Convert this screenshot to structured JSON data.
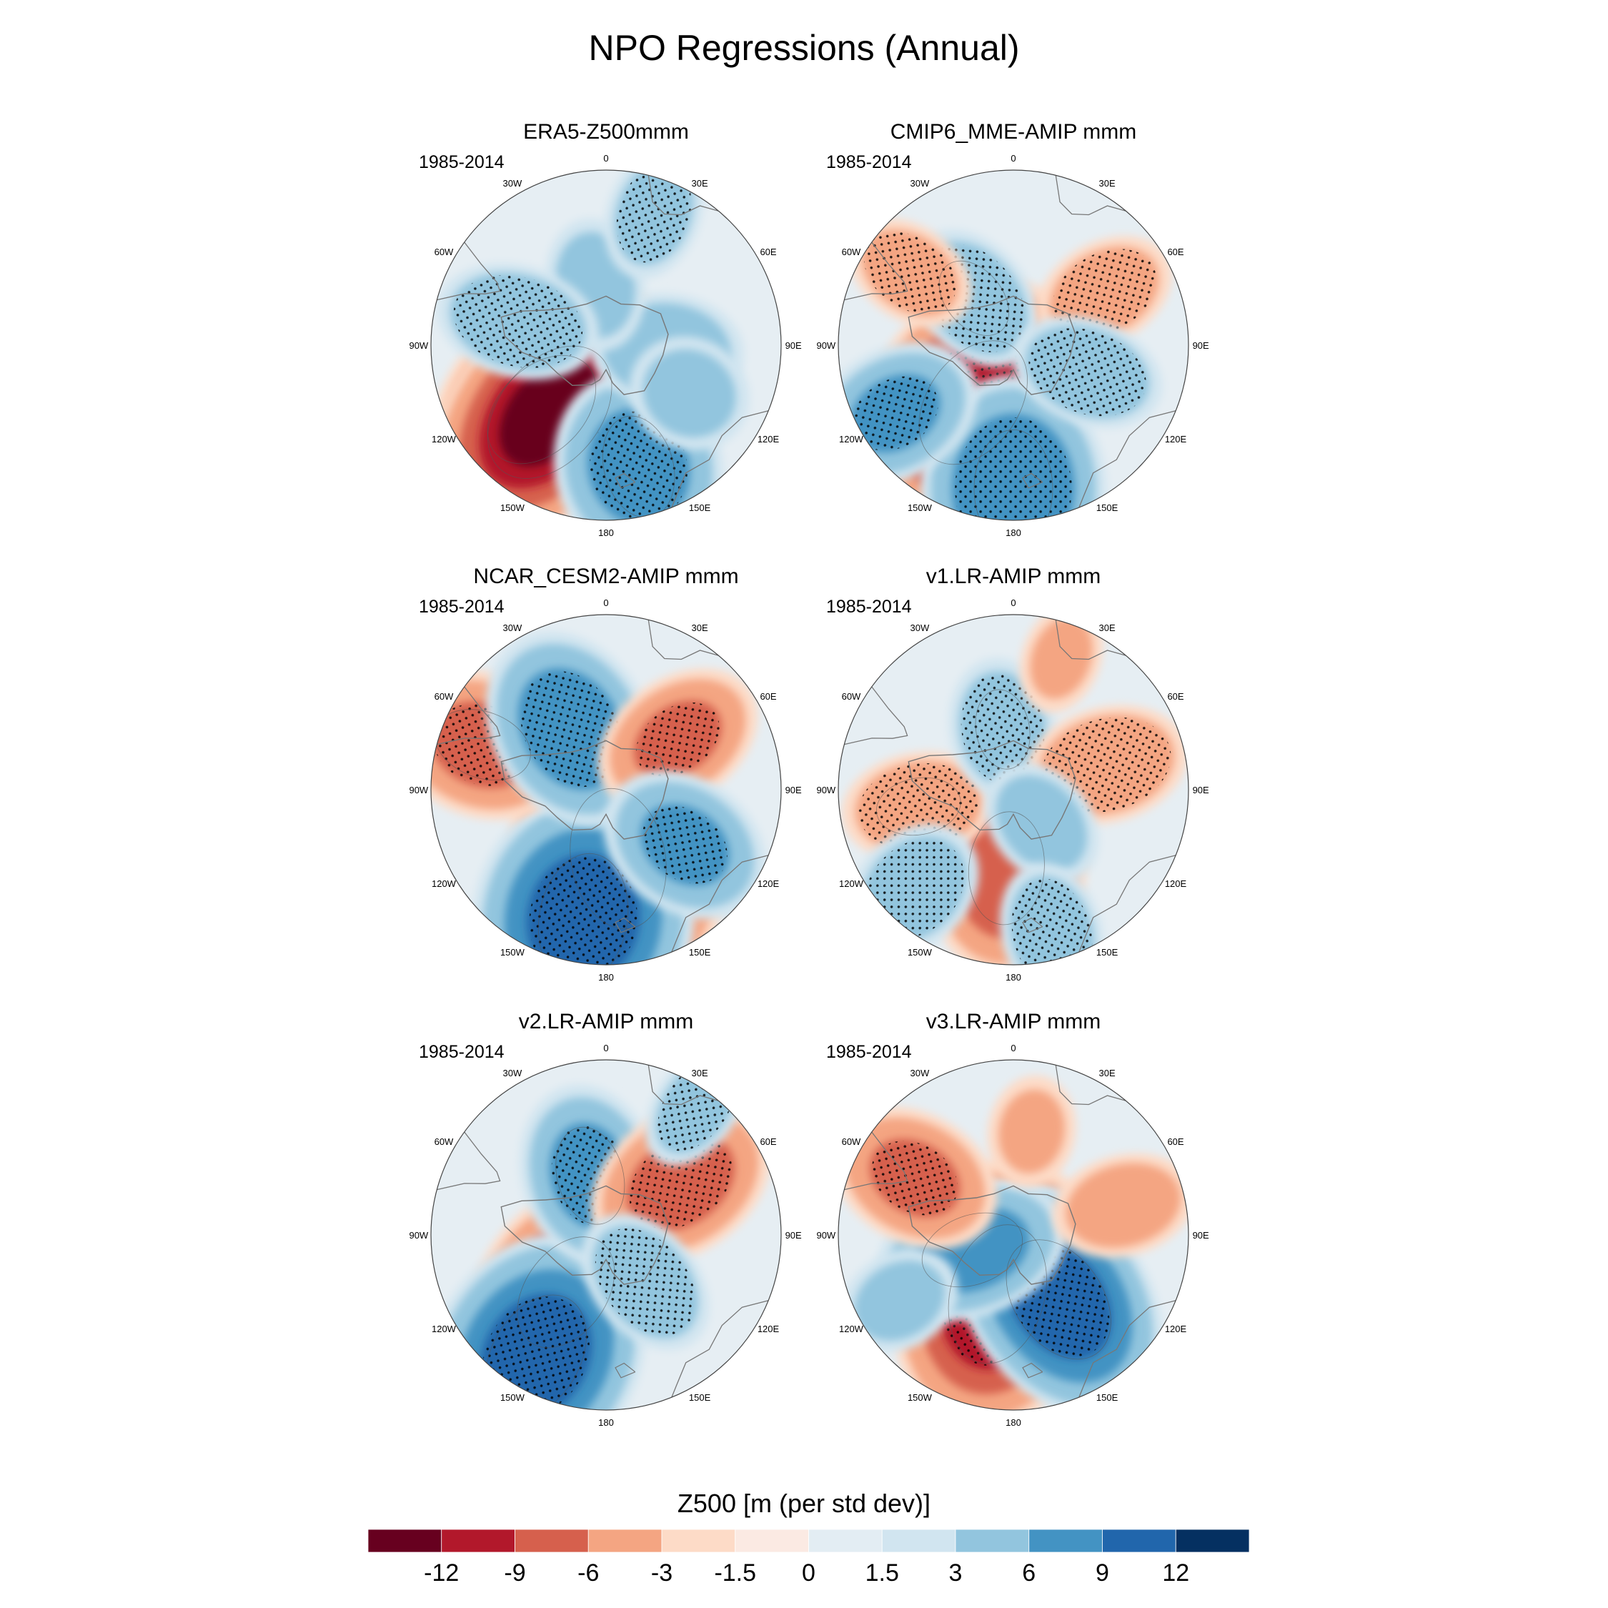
{
  "title": "NPO Regressions (Annual)",
  "lon_labels": [
    "0",
    "30E",
    "60E",
    "90E",
    "120E",
    "150E",
    "180",
    "150W",
    "120W",
    "90W",
    "60W",
    "30W"
  ],
  "panels": [
    {
      "title": "ERA5-Z500mmm",
      "period": "1985-2014",
      "blobs": [
        {
          "lon": 225,
          "r": 0.52,
          "v": -9.5,
          "ext": 0.14,
          "stip": true
        },
        {
          "lon": 220,
          "r": 0.5,
          "v": -12,
          "ext": 0.07,
          "stip": false
        },
        {
          "lon": 165,
          "r": 0.72,
          "v": 7,
          "ext": 0.18,
          "stip": true
        },
        {
          "lon": 95,
          "r": 0.35,
          "v": 5,
          "ext": 0.12,
          "stip": false
        },
        {
          "lon": 350,
          "r": 0.35,
          "v": 4,
          "ext": 0.12,
          "stip": false
        },
        {
          "lon": 20,
          "r": 0.8,
          "v": 4,
          "ext": 0.1,
          "stip": true
        },
        {
          "lon": 285,
          "r": 0.52,
          "v": 5.5,
          "ext": 0.09,
          "stip": true
        },
        {
          "lon": 120,
          "r": 0.55,
          "v": 3.5,
          "ext": 0.2,
          "stip": false
        }
      ]
    },
    {
      "title": "CMIP6_MME-AMIP  mmm",
      "period": "1985-2014",
      "blobs": [
        {
          "lon": 215,
          "r": 0.4,
          "v": -10.5,
          "ext": 0.13,
          "stip": true
        },
        {
          "lon": 180,
          "r": 0.82,
          "v": 8.5,
          "ext": 0.16,
          "stip": true
        },
        {
          "lon": 320,
          "r": 0.35,
          "v": 5,
          "ext": 0.1,
          "stip": true
        },
        {
          "lon": 305,
          "r": 0.72,
          "v": -4,
          "ext": 0.1,
          "stip": true
        },
        {
          "lon": 60,
          "r": 0.6,
          "v": -4.5,
          "ext": 0.1,
          "stip": true
        },
        {
          "lon": 110,
          "r": 0.45,
          "v": 5,
          "ext": 0.09,
          "stip": true
        },
        {
          "lon": 240,
          "r": 0.78,
          "v": 6,
          "ext": 0.12,
          "stip": true
        }
      ]
    },
    {
      "title": "NCAR_CESM2-AMIP  mmm",
      "period": "1985-2014",
      "blobs": [
        {
          "lon": 170,
          "r": 0.4,
          "v": -11,
          "ext": 0.14,
          "stip": true
        },
        {
          "lon": 190,
          "r": 0.75,
          "v": 10,
          "ext": 0.18,
          "stip": true
        },
        {
          "lon": 290,
          "r": 0.75,
          "v": -6.5,
          "ext": 0.14,
          "stip": true
        },
        {
          "lon": 330,
          "r": 0.4,
          "v": 7.5,
          "ext": 0.13,
          "stip": true
        },
        {
          "lon": 55,
          "r": 0.5,
          "v": -6,
          "ext": 0.1,
          "stip": true
        },
        {
          "lon": 125,
          "r": 0.55,
          "v": 6,
          "ext": 0.13,
          "stip": true
        }
      ]
    },
    {
      "title": "v1.LR-AMIP  mmm",
      "period": "1985-2014",
      "blobs": [
        {
          "lon": 185,
          "r": 0.45,
          "v": -8,
          "ext": 0.12,
          "stip": false
        },
        {
          "lon": 260,
          "r": 0.55,
          "v": -5,
          "ext": 0.1,
          "stip": true
        },
        {
          "lon": 350,
          "r": 0.35,
          "v": 4.5,
          "ext": 0.12,
          "stip": true
        },
        {
          "lon": 75,
          "r": 0.55,
          "v": -5.5,
          "ext": 0.1,
          "stip": true
        },
        {
          "lon": 140,
          "r": 0.25,
          "v": 4,
          "ext": 0.12,
          "stip": false
        },
        {
          "lon": 225,
          "r": 0.8,
          "v": 4.5,
          "ext": 0.14,
          "stip": true
        },
        {
          "lon": 165,
          "r": 0.85,
          "v": 4.5,
          "ext": 0.1,
          "stip": true
        },
        {
          "lon": 20,
          "r": 0.8,
          "v": -3,
          "ext": 0.1,
          "stip": false
        }
      ]
    },
    {
      "title": "v2.LR-AMIP  mmm",
      "period": "1985-2014",
      "blobs": [
        {
          "lon": 215,
          "r": 0.4,
          "v": -9,
          "ext": 0.12,
          "stip": true
        },
        {
          "lon": 210,
          "r": 0.8,
          "v": 10,
          "ext": 0.15,
          "stip": true
        },
        {
          "lon": 345,
          "r": 0.35,
          "v": 6.5,
          "ext": 0.12,
          "stip": true
        },
        {
          "lon": 55,
          "r": 0.52,
          "v": -7,
          "ext": 0.11,
          "stip": true
        },
        {
          "lon": 140,
          "r": 0.35,
          "v": 5,
          "ext": 0.09,
          "stip": true
        },
        {
          "lon": 35,
          "r": 0.9,
          "v": 4,
          "ext": 0.06,
          "stip": true
        }
      ]
    },
    {
      "title": "v3.LR-AMIP  mmm",
      "period": "1985-2014",
      "blobs": [
        {
          "lon": 195,
          "r": 0.35,
          "v": -11,
          "ext": 0.12,
          "stip": true
        },
        {
          "lon": 145,
          "r": 0.45,
          "v": 10,
          "ext": 0.1,
          "stip": true
        },
        {
          "lon": 250,
          "r": 0.25,
          "v": 7,
          "ext": 0.09,
          "stip": false
        },
        {
          "lon": 300,
          "r": 0.65,
          "v": -6,
          "ext": 0.12,
          "stip": true
        },
        {
          "lon": 75,
          "r": 0.65,
          "v": -4.5,
          "ext": 0.1,
          "stip": false
        },
        {
          "lon": 10,
          "r": 0.6,
          "v": -3,
          "ext": 0.14,
          "stip": false
        },
        {
          "lon": 240,
          "r": 0.75,
          "v": 3.5,
          "ext": 0.14,
          "stip": false
        }
      ]
    }
  ],
  "colorbar": {
    "title": "Z500 [m (per std dev)]",
    "labels": [
      "-12",
      "-9",
      "-6",
      "-3",
      "-1.5",
      "0",
      "1.5",
      "3",
      "6",
      "9",
      "12"
    ],
    "levels": [
      -12,
      -9,
      -6,
      -3,
      -1.5,
      0,
      1.5,
      3,
      6,
      9,
      12
    ],
    "colors": [
      "#67001f",
      "#b2182b",
      "#d6604d",
      "#f4a582",
      "#fddbc7",
      "#fbeae3",
      "#e3edf3",
      "#d1e5f0",
      "#92c5de",
      "#4393c3",
      "#2166ac",
      "#053061"
    ]
  },
  "chart_data": {
    "type": "heatmap",
    "title": "NPO Regressions (Annual)",
    "variable": "Z500 [m (per std dev)]",
    "projection": "polar stereographic (Southern Hemisphere)",
    "period": "1985-2014",
    "panels": [
      "ERA5-Z500mmm",
      "CMIP6_MME-AMIP  mmm",
      "NCAR_CESM2-AMIP  mmm",
      "v1.LR-AMIP  mmm",
      "v2.LR-AMIP  mmm",
      "v3.LR-AMIP  mmm"
    ],
    "contour_levels": [
      -12,
      -9,
      -6,
      -3,
      -1.5,
      0,
      1.5,
      3,
      6,
      9,
      12
    ],
    "colormap": "blue-white-red",
    "stippling": "statistically significant regions"
  }
}
